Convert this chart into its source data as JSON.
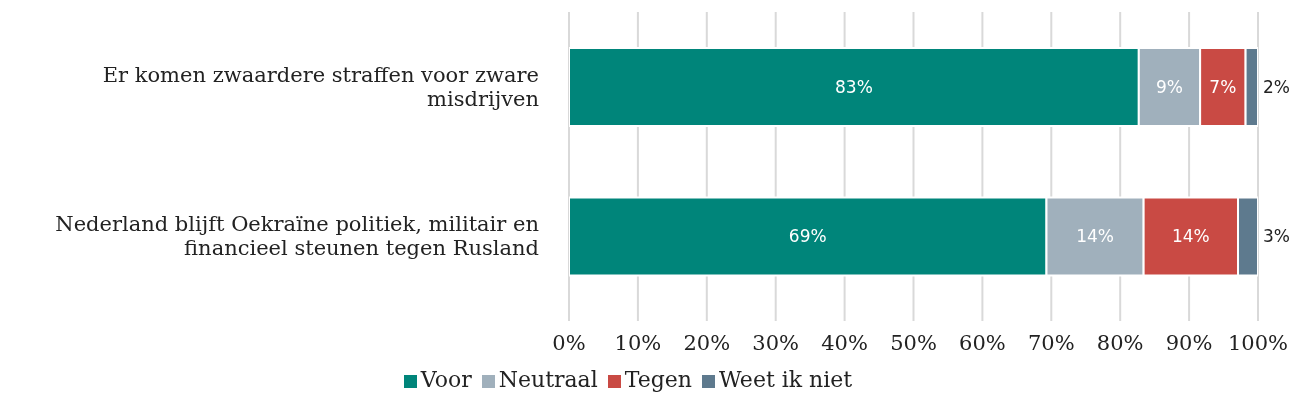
{
  "chart_data": {
    "type": "bar",
    "orientation": "horizontal",
    "stacked": true,
    "categories": [
      "Er komen zwaardere straffen voor zware misdrijven",
      "Nederland blijft Oekraïne politiek, militair en financieel steunen tegen Rusland"
    ],
    "series": [
      {
        "name": "Voor",
        "color": "#00857a",
        "values": [
          82.7,
          69.3
        ],
        "value_labels": [
          "83%",
          "69%"
        ]
      },
      {
        "name": "Neutraal",
        "color": "#a0b0bc",
        "values": [
          8.9,
          14.1
        ],
        "value_labels": [
          "9%",
          "14%"
        ]
      },
      {
        "name": "Tegen",
        "color": "#c94a44",
        "values": [
          6.6,
          13.7
        ],
        "value_labels": [
          "7%",
          "14%"
        ]
      },
      {
        "name": "Weet ik niet",
        "color": "#5e7a8e",
        "values": [
          1.8,
          2.9
        ],
        "value_labels": [
          "2%",
          "3%"
        ]
      }
    ],
    "xlim": [
      0,
      100
    ],
    "xticks": [
      {
        "value": 0,
        "label": "0%"
      },
      {
        "value": 10,
        "label": "10%"
      },
      {
        "value": 20,
        "label": "20%"
      },
      {
        "value": 30,
        "label": "30%"
      },
      {
        "value": 40,
        "label": "40%"
      },
      {
        "value": 50,
        "label": "50%"
      },
      {
        "value": 60,
        "label": "60%"
      },
      {
        "value": 70,
        "label": "70%"
      },
      {
        "value": 80,
        "label": "80%"
      },
      {
        "value": 90,
        "label": "90%"
      },
      {
        "value": 100,
        "label": "100%"
      }
    ],
    "grid": "x",
    "legend": "bottom"
  }
}
